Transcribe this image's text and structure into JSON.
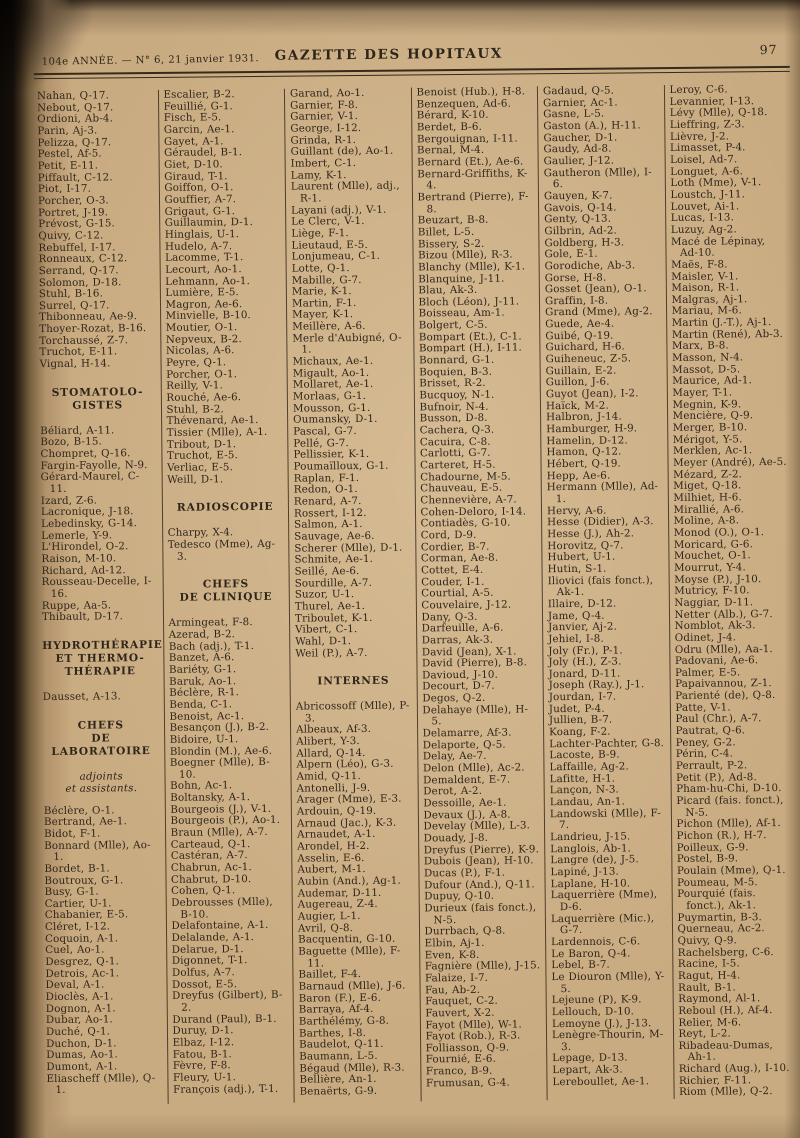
{
  "header": {
    "issue": "104e ANNÉE. — N° 6, 21 janvier 1931.",
    "title": "GAZETTE DES HOPITAUX",
    "page_number": "97"
  },
  "columns": [
    {
      "blocks": [
        {
          "type": "entries",
          "items": [
            "Nahan, Q-17.",
            "Nebout, Q-17.",
            "Ordioni, Ab-4.",
            "Parin, Aj-3.",
            "Pelizza, Q-17.",
            "Pestel, Af-5.",
            "Petit, E-11.",
            "Piffault, C-12.",
            "Piot, I-17.",
            "Porcher, O-3.",
            "Portret, J-19.",
            "Prévost, G-15.",
            "Quivy, C-12.",
            "Rebuffel, I-17.",
            "Ronneaux, C-12.",
            "Serrand, Q-17.",
            "Solomon, D-18.",
            "Stuhl, B-16.",
            "Surrel, Q-17.",
            "Thibonneau, Ae-9.",
            "Thoyer-Rozat, B-16.",
            "Torchaussé, Z-7.",
            "Truchot, E-11.",
            "Vignal, H-14."
          ]
        },
        {
          "type": "heading",
          "lines": [
            "STOMATOLO-",
            "GISTES"
          ]
        },
        {
          "type": "entries",
          "items": [
            "Béliard, A-11.",
            "Bozo, B-15.",
            "Chompret, Q-16.",
            "Fargin-Fayolle, N-9.",
            "Gérard-Maurel, C-11.",
            "Izard, Z-6.",
            "Lacronique, J-18.",
            "Lebedinsky, G-14.",
            "Lemerle, Y-9.",
            "L'Hirondel, O-2.",
            "Raison, M-10.",
            "Richard, Ad-12.",
            "Rousseau-Decelle, I-16.",
            "Ruppe, Aa-5.",
            "Thibault, D-17."
          ]
        },
        {
          "type": "heading",
          "lines": [
            "HYDROTHÉRAPIE",
            "ET THERMO-",
            "THÉRAPIE"
          ]
        },
        {
          "type": "entries",
          "items": [
            "Dausset, A-13."
          ]
        },
        {
          "type": "heading",
          "lines": [
            "CHEFS",
            "DE LABORATOIRE"
          ]
        },
        {
          "type": "subheading",
          "lines": [
            "adjoints",
            "et assistants."
          ]
        },
        {
          "type": "entries",
          "items": [
            "Béclère, O-1.",
            "Bertrand, Ae-1.",
            "Bidot, F-1.",
            "Bonnard (Mlle), Ao-1.",
            "Bordet, B-1.",
            "Boutroux, G-1.",
            "Busy, G-1.",
            "Cartier, U-1.",
            "Chabanier, E-5.",
            "Cléret, I-12.",
            "Coquoin, A-1.",
            "Cuel, Ao-1.",
            "Desgrez, Q-1.",
            "Detrois, Ac-1.",
            "Deval, A-1.",
            "Dioclès, A-1.",
            "Dognon, A-1.",
            "Dubar, Ao-1.",
            "Duché, Q-1.",
            "Duchon, D-1.",
            "Dumas, Ao-1.",
            "Dumont, A-1.",
            "Eliascheff (Mlle), Q-1."
          ]
        }
      ]
    },
    {
      "blocks": [
        {
          "type": "entries",
          "items": [
            "Escalier, B-2.",
            "Feuillié, G-1.",
            "Fisch, E-5.",
            "Garcin, Ae-1.",
            "Gayet, A-1.",
            "Géraudel, B-1.",
            "Giet, D-10.",
            "Giraud, T-1.",
            "Goiffon, O-1.",
            "Gouffier, A-7.",
            "Grigaut, G-1.",
            "Guillaumin, D-1.",
            "Hinglais, U-1.",
            "Hudelo, A-7.",
            "Lacomme, T-1.",
            "Lecourt, Ao-1.",
            "Lehmann, Ao-1.",
            "Lumière, E-5.",
            "Magron, Ae-6.",
            "Minvielle, B-10.",
            "Moutier, O-1.",
            "Nepveux, B-2.",
            "Nicolas, A-6.",
            "Peyre, Q-1.",
            "Porcher, O-1.",
            "Reilly, V-1.",
            "Rouché, Ae-6.",
            "Stuhl, B-2.",
            "Thévenard, Ae-1.",
            "Tissier (Mlle), A-1.",
            "Tribout, D-1.",
            "Truchot, E-5.",
            "Verliac, E-5.",
            "Weill, D-1."
          ]
        },
        {
          "type": "heading",
          "lines": [
            "RADIOSCOPIE"
          ]
        },
        {
          "type": "entries",
          "items": [
            "Charpy, X-4.",
            "Tedesco (Mme), Ag-3."
          ]
        },
        {
          "type": "heading",
          "lines": [
            "CHEFS",
            "DE CLINIQUE"
          ]
        },
        {
          "type": "entries",
          "items": [
            "Armingeat, F-8.",
            "Azerad, B-2.",
            "Bach (adj.), T-1.",
            "Banzet, A-6.",
            "Bariéty, G-1.",
            "Baruk, Ao-1.",
            "Béclère, R-1.",
            "Benda, C-1.",
            "Benoist, Ac-1.",
            "Besançon (J.), B-2.",
            "Bidoire, U-1.",
            "Blondin (M.), Ae-6.",
            "Boegner (Mlle), B-10.",
            "Bohn, Ac-1.",
            "Boltansky, A-1.",
            "Bourgeois (J.), V-1.",
            "Bourgeois (P.), Ao-1.",
            "Braun (Mlle), A-7.",
            "Carteaud, Q-1.",
            "Castéran, A-7.",
            "Chabrun, Ac-1.",
            "Chabrut, D-10.",
            "Cohen, Q-1.",
            "Debrousses (Mlle), B-10.",
            "Delafontaine, A-1.",
            "Delalande, A-1.",
            "Delarue, D-1.",
            "Digonnet, T-1.",
            "Dolfus, A-7.",
            "Dossot, E-5.",
            "Dreyfus (Gilbert), B-2.",
            "Durand (Paul), B-1.",
            "Duruy, D-1.",
            "Elbaz, I-12.",
            "Fatou, B-1.",
            "Fèvre, F-8.",
            "Fleury, U-1.",
            "François (adj.), T-1."
          ]
        }
      ]
    },
    {
      "blocks": [
        {
          "type": "entries",
          "items": [
            "Garand, Ao-1.",
            "Garnier, F-8.",
            "Garnier, V-1.",
            "George, I-12.",
            "Grinda, R-1.",
            "Guillant (de), Ao-1.",
            "Imbert, C-1.",
            "Lamy, K-1.",
            "Laurent (Mlle), adj., R-1.",
            "Layani (adj.), V-1.",
            "Le Clerc, V-1.",
            "Liège, F-1.",
            "Lieutaud, E-5.",
            "Lonjumeau, C-1.",
            "Lotte, Q-1.",
            "Mabille, G-7.",
            "Marie, K-1.",
            "Martin, F-1.",
            "Mayer, K-1.",
            "Meillère, A-6.",
            "Merle d'Aubigné, O-1.",
            "Michaux, Ae-1.",
            "Migault, Ao-1.",
            "Mollaret, Ae-1.",
            "Morlaas, G-1.",
            "Mousson, G-1.",
            "Oumansky, D-1.",
            "Pascal, G-7.",
            "Pellé, G-7.",
            "Pellissier, K-1.",
            "Poumaïlloux, G-1.",
            "Raplan, F-1.",
            "Redon, O-1.",
            "Renard, A-7.",
            "Rossert, I-12.",
            "Salmon, A-1.",
            "Sauvage, Ae-6.",
            "Scherer (Mlle), D-1.",
            "Schmite, Ae-1.",
            "Seillé, Ae-6.",
            "Sourdille, A-7.",
            "Suzor, U-1.",
            "Thurel, Ae-1.",
            "Triboulet, K-1.",
            "Vibert, C-1.",
            "Wahl, D-1.",
            "Weil (P.), A-7."
          ]
        },
        {
          "type": "heading",
          "lines": [
            "INTERNES"
          ]
        },
        {
          "type": "entries",
          "items": [
            "Abricossoff (Mlle), P-3.",
            "Albeaux, Af-3.",
            "Alibert, Y-3.",
            "Allard, Q-14.",
            "Alpern (Léo), G-3.",
            "Amid, Q-11.",
            "Antonelli, J-9.",
            "Arager (Mme), E-3.",
            "Ardouin, Q-19.",
            "Arnaud (Jac.), K-3.",
            "Arnaudet, A-1.",
            "Arondel, H-2.",
            "Asselin, E-6.",
            "Aubert, M-1.",
            "Aubin (And.), Ag-1.",
            "Audemar, D-11.",
            "Augereau, Z-4.",
            "Augier, L-1.",
            "Avril, Q-8.",
            "Bacquentin, G-10.",
            "Baguette (Mlle), F-11.",
            "Baillet, F-4.",
            "Barnaud (Mlle), J-6.",
            "Baron (F.), E-6.",
            "Barraya, Af-4.",
            "Barthélémy, G-8.",
            "Barthes, I-8.",
            "Baudelot, Q-11.",
            "Baumann, L-5.",
            "Bégaud (Mlle), R-3.",
            "Bellière, An-1.",
            "Benaërts, G-9."
          ]
        }
      ]
    },
    {
      "blocks": [
        {
          "type": "entries",
          "items": [
            "Benoist (Hub.), H-8.",
            "Benzequen, Ad-6.",
            "Bérard, K-10.",
            "Berdet, B-6.",
            "Bergouignan, I-11.",
            "Bernal, M-4.",
            "Bernard (Et.), Ae-6.",
            "Bernard-Griffiths, K-4.",
            "Bertrand (Pierre), F-8.",
            "Beuzart, B-8.",
            "Billet, L-5.",
            "Bissery, S-2.",
            "Bizou (Mlle), R-3.",
            "Blanchy (Mlle), K-1.",
            "Blanquine, J-11.",
            "Blau, Ak-3.",
            "Bloch (Léon), J-11.",
            "Boisseau, Am-1.",
            "Bolgert, C-5.",
            "Bompart (Et.), C-1.",
            "Bompart (H.), I-11.",
            "Bonnard, G-1.",
            "Boquien, B-3.",
            "Brisset, R-2.",
            "Bucquoy, N-1.",
            "Bufnoir, N-4.",
            "Busson, D-8.",
            "Cachera, Q-3.",
            "Cacuira, C-8.",
            "Carlotti, G-7.",
            "Carteret, H-5.",
            "Chadourne, M-5.",
            "Chauveau, E-5.",
            "Chennevière, A-7.",
            "Cohen-Deloro, I-14.",
            "Contiadès, G-10.",
            "Cord, D-9.",
            "Cordier, B-7.",
            "Corman, Ae-8.",
            "Cottet, E-4.",
            "Couder, I-1.",
            "Courtial, A-5.",
            "Couvelaire, J-12.",
            "Dany, Q-3.",
            "Darfeuille, A-6.",
            "Darras, Ak-3.",
            "David (Jean), X-1.",
            "David (Pierre), B-8.",
            "Davioud, J-10.",
            "Decourt, D-7.",
            "Degos, Q-2.",
            "Delahaye (Mlle), H-5.",
            "Delamarre, Af-3.",
            "Delaporte, Q-5.",
            "Delay, Ae-7.",
            "Delon (Mlle), Ac-2.",
            "Demaldent, E-7.",
            "Derot, A-2.",
            "Dessoille, Ae-1.",
            "Devaux (J.), A-8.",
            "Develay (Mlle), L-3.",
            "Douady, J-8.",
            "Dreyfus (Pierre), K-9.",
            "Dubois (Jean), H-10.",
            "Ducas (P.), F-1.",
            "Dufour (And.), Q-11.",
            "Dupuy, Q-10.",
            "Durieux (fais fonct.), N-5.",
            "Durrbach, Q-8.",
            "Elbin, Aj-1.",
            "Even, K-8.",
            "Fagnière (Mlle), J-15.",
            "Falaize, I-7.",
            "Fau, Ab-2.",
            "Fauquet, C-2.",
            "Fauvert, X-2.",
            "Fayot (Mlle), W-1.",
            "Fayot (Rob.), R-3.",
            "Folliasson, Q-9.",
            "Fournié, E-6.",
            "Franco, B-9.",
            "Frumusan, G-4."
          ]
        }
      ]
    },
    {
      "blocks": [
        {
          "type": "entries",
          "items": [
            "Gadaud, Q-5.",
            "Garnier, Ac-1.",
            "Gasne, L-5.",
            "Gaston (A.), H-11.",
            "Gaucher, D-1.",
            "Gaudy, Ad-8.",
            "Gaulier, J-12.",
            "Gautheron (Mlle), I-6.",
            "Gauyen, K-7.",
            "Gavois, Q-14.",
            "Genty, Q-13.",
            "Gilbrin, Ad-2.",
            "Goldberg, H-3.",
            "Gole, E-1.",
            "Gorodiche, Ab-3.",
            "Gorse, H-8.",
            "Gosset (Jean), O-1.",
            "Graffin, I-8.",
            "Grand (Mme), Ag-2.",
            "Guede, Ae-4.",
            "Guibé, Q-19.",
            "Guichard, H-6.",
            "Guiheneuc, Z-5.",
            "Guillain, E-2.",
            "Guillon, J-6.",
            "Guyot (Jean), I-2.",
            "Haïck, M-2.",
            "Halbron, J-14.",
            "Hamburger, H-9.",
            "Hamelin, D-12.",
            "Hamon, Q-12.",
            "Hébert, Q-19.",
            "Hepp, Ae-6.",
            "Hermann (Mlle), Ad-1.",
            "Hervy, A-6.",
            "Hesse (Didier), A-3.",
            "Hesse (J.), Ah-2.",
            "Horovitz, Q-7.",
            "Hubert, U-1.",
            "Hutin, S-1.",
            "Iliovici (fais fonct.), Ak-1.",
            "Illaire, D-12.",
            "Jame, Q-4.",
            "Janvier, Aj-2.",
            "Jehiel, I-8.",
            "Joly (Fr.), P-1.",
            "Joly (H.), Z-3.",
            "Jonard, D-11.",
            "Joseph (Ray.), J-1.",
            "Jourdan, I-7.",
            "Judet, P-4.",
            "Jullien, B-7.",
            "Koang, F-2.",
            "Lachter-Pachter, G-8.",
            "Lacoste, B-9.",
            "Laffaille, Ag-2.",
            "Lafitte, H-1.",
            "Lançon, N-3.",
            "Landau, An-1.",
            "Landowski (Mlle), F-7.",
            "Landrieu, J-15.",
            "Langlois, Ab-1.",
            "Langre (de), J-5.",
            "Lapiné, J-13.",
            "Laplane, H-10.",
            "Laquerrière (Mme), D-6.",
            "Laquerrière (Mic.), G-7.",
            "Lardennois, C-6.",
            "Le Baron, Q-4.",
            "Lebel, B-7.",
            "Le Diouron (Mlle), Y-5.",
            "Lejeune (P), K-9.",
            "Lellouch, D-10.",
            "Lemoyne (J.), J-13.",
            "Lenègre-Thourin, M-3.",
            "Lepage, D-13.",
            "Lepart, Ak-3.",
            "Lereboullet, Ae-1."
          ]
        }
      ]
    },
    {
      "blocks": [
        {
          "type": "entries",
          "items": [
            "Leroy, C-6.",
            "Levannier, I-13.",
            "Lévy (Mlle), Q-18.",
            "Lieffring, Z-3.",
            "Lièvre, J-2.",
            "Limasset, P-4.",
            "Loisel, Ad-7.",
            "Longuet, A-6.",
            "Loth (Mme), V-1.",
            "Loustch, J-11.",
            "Louvet, Ai-1.",
            "Lucas, I-13.",
            "Luzuy, Ag-2.",
            "Macé de Lépinay, Ad-10.",
            "Maës, F-8.",
            "Maisler, V-1.",
            "Maison, R-1.",
            "Malgras, Aj-1.",
            "Mariau, M-6.",
            "Martin (J.-T.), Aj-1.",
            "Martin (René), Ab-3.",
            "Marx, B-8.",
            "Masson, N-4.",
            "Massot, D-5.",
            "Maurice, Ad-1.",
            "Mayer, T-1.",
            "Megnin, K-9.",
            "Mencière, Q-9.",
            "Merger, B-10.",
            "Mérigot, Y-5.",
            "Merklen, Ac-1.",
            "Meyer (André), Ae-5.",
            "Mézard, Z-2.",
            "Miget, Q-18.",
            "Milhiet, H-6.",
            "Mirallié, A-6.",
            "Moline, A-8.",
            "Monod (O.), O-1.",
            "Moricard, G-6.",
            "Mouchet, O-1.",
            "Mourrut, Y-4.",
            "Moyse (P.), J-10.",
            "Mutricy, F-10.",
            "Naggiar, D-11.",
            "Netter (Alb.), G-7.",
            "Nomblot, Ak-3.",
            "Odinet, J-4.",
            "Odru (Mlle), Aa-1.",
            "Padovani, Ae-6.",
            "Palmer, E-5.",
            "Papaivannou, Z-1.",
            "Parienté (de), Q-8.",
            "Patte, V-1.",
            "Paul (Chr.), A-7.",
            "Pautrat, Q-6.",
            "Peney, G-2.",
            "Périn, C-4.",
            "Perrault, P-2.",
            "Petit (P.), Ad-8.",
            "Pham-hu-Chi, D-10.",
            "Picard (fais. fonct.), N-5.",
            "Pichon (Mlle), Af-1.",
            "Pichon (R.), H-7.",
            "Poilleux, G-9.",
            "Postel, B-9.",
            "Poulain (Mme), Q-1.",
            "Poumeau, M-5.",
            "Pourquié (fais. fonct.), Ak-1.",
            "Puymartin, B-3.",
            "Querneau, Ac-2.",
            "Quivy, Q-9.",
            "Rachelsberg, C-6.",
            "Racine, I-5.",
            "Ragut, H-4.",
            "Rault, B-1.",
            "Raymond, Al-1.",
            "Reboul (H.), Af-4.",
            "Relier, M-6.",
            "Reyt, L-2.",
            "Ribadeau-Dumas, Ah-1.",
            "Richard (Aug.), I-10.",
            "Richier, F-11.",
            "Riom (Mlle), Q-2."
          ]
        }
      ]
    }
  ]
}
